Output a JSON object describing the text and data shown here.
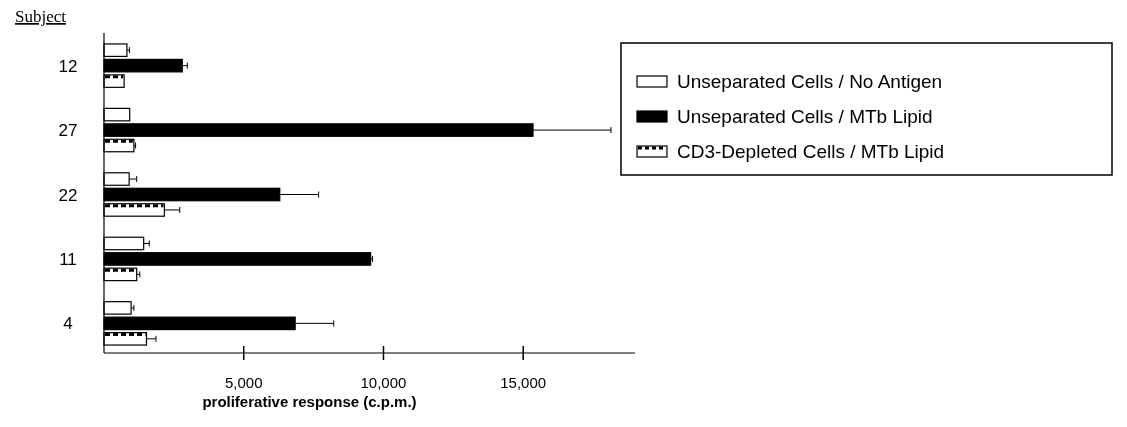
{
  "chart_data": {
    "type": "bar",
    "orientation": "horizontal",
    "ylabel": "Subject",
    "xlabel": "proliferative response (c.p.m.)",
    "categories": [
      "12",
      "27",
      "22",
      "11",
      "4"
    ],
    "series": [
      {
        "name": "Unseparated Cells / No Antigen",
        "color": "#ffffff",
        "values": [
          820,
          920,
          900,
          1420,
          970
        ],
        "errors": [
          90,
          null,
          270,
          200,
          100
        ]
      },
      {
        "name": "Unseparated Cells / MTb Lipid",
        "color": "#000000",
        "values": [
          2800,
          15350,
          6290,
          9540,
          6840
        ],
        "errors": [
          180,
          2790,
          1390,
          70,
          1380
        ]
      },
      {
        "name": "CD3-Depleted Cells / MTb Lipid",
        "color": "#ffffff",
        "values": [
          720,
          1070,
          2160,
          1170,
          1520
        ],
        "errors": [
          null,
          60,
          550,
          110,
          340
        ]
      }
    ],
    "xlim": [
      0,
      19000
    ],
    "xticks": [
      {
        "value": 5000,
        "label": "5,000"
      },
      {
        "value": 10000,
        "label": "10,000"
      },
      {
        "value": 15000,
        "label": "15,000"
      }
    ],
    "grid": false,
    "legend": "top right"
  }
}
